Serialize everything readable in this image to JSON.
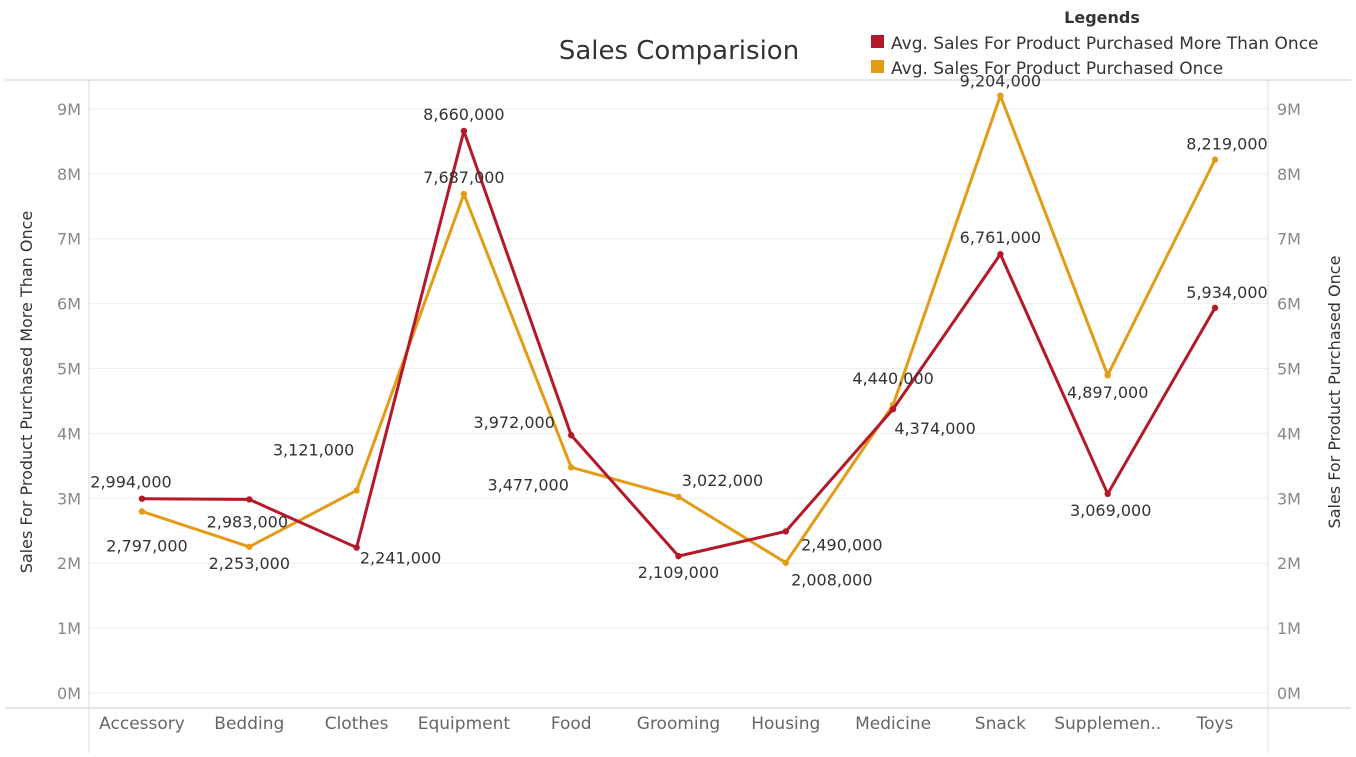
{
  "colors": {
    "more_than_once": "#b5182a",
    "once": "#e39c17"
  },
  "chart_data": {
    "type": "line",
    "title": "Sales Comparision",
    "legend_title": "Legends",
    "legend_position": "top-right",
    "categories": [
      "Accessory",
      "Bedding",
      "Clothes",
      "Equipment",
      "Food",
      "Grooming",
      "Housing",
      "Medicine",
      "Snack",
      "Supplemen..",
      "Toys"
    ],
    "series": [
      {
        "name": "Avg. Sales For Product Purchased More Than Once",
        "axis": "left",
        "values": [
          2994000,
          2983000,
          2241000,
          8660000,
          3972000,
          2109000,
          2490000,
          4374000,
          6761000,
          3069000,
          5934000
        ],
        "labels": [
          "2,994,000",
          "2,983,000",
          "2,241,000",
          "8,660,000",
          "3,972,000",
          "2,109,000",
          "2,490,000",
          "4,374,000",
          "6,761,000",
          "3,069,000",
          "5,934,000"
        ]
      },
      {
        "name": "Avg. Sales For Product Purchased Once",
        "axis": "right",
        "values": [
          2797000,
          2253000,
          3121000,
          7687000,
          3477000,
          3022000,
          2008000,
          4440000,
          9204000,
          4897000,
          8219000
        ],
        "labels": [
          "2,797,000",
          "2,253,000",
          "3,121,000",
          "7,687,000",
          "3,477,000",
          "3,022,000",
          "2,008,000",
          "4,440,000",
          "9,204,000",
          "4,897,000",
          "8,219,000"
        ]
      }
    ],
    "y_left_label": "Sales For Product Purchased More Than Once",
    "y_right_label": "Sales For Product Purchased Once",
    "ylim": [
      0,
      9750000
    ],
    "y_ticks": [
      0,
      1000000,
      2000000,
      3000000,
      4000000,
      5000000,
      6000000,
      7000000,
      8000000,
      9000000
    ],
    "y_tick_labels": [
      "0M",
      "1M",
      "2M",
      "3M",
      "4M",
      "5M",
      "6M",
      "7M",
      "8M",
      "9M"
    ],
    "grid": true
  }
}
